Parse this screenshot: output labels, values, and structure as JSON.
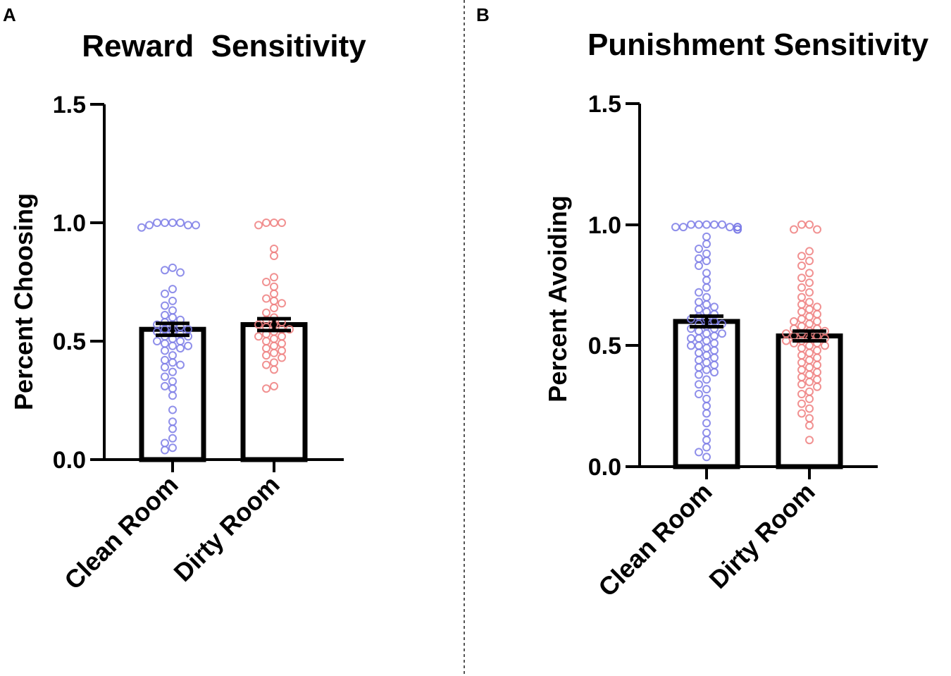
{
  "chart_data": [
    {
      "panel": "A",
      "type": "bar",
      "title": "Reward  Sensitivity",
      "ylabel": "Percent Choosing",
      "ylim": [
        0,
        1.5
      ],
      "yticks": [
        "0.0",
        "0.5",
        "1.0",
        "1.5"
      ],
      "yticks_values": [
        0,
        0.5,
        1.0,
        1.5
      ],
      "categories": [
        "Clean Room",
        "Dirty Room"
      ],
      "values": [
        0.55,
        0.57
      ],
      "sem": [
        0.025,
        0.025
      ],
      "point_colors": [
        "#7b7be6",
        "#ef7e7e"
      ],
      "points": [
        [
          1.0,
          1.0,
          1.0,
          1.0,
          0.99,
          0.99,
          0.99,
          0.98,
          0.81,
          0.8,
          0.79,
          0.72,
          0.7,
          0.67,
          0.65,
          0.63,
          0.61,
          0.6,
          0.59,
          0.58,
          0.57,
          0.57,
          0.56,
          0.55,
          0.55,
          0.54,
          0.54,
          0.53,
          0.52,
          0.52,
          0.51,
          0.5,
          0.5,
          0.49,
          0.48,
          0.48,
          0.47,
          0.46,
          0.44,
          0.42,
          0.41,
          0.4,
          0.39,
          0.37,
          0.35,
          0.33,
          0.31,
          0.3,
          0.27,
          0.21,
          0.16,
          0.13,
          0.09,
          0.07,
          0.05,
          0.04
        ],
        [
          1.0,
          1.0,
          1.0,
          0.99,
          0.89,
          0.86,
          0.77,
          0.75,
          0.73,
          0.7,
          0.68,
          0.67,
          0.66,
          0.64,
          0.62,
          0.6,
          0.59,
          0.58,
          0.57,
          0.57,
          0.56,
          0.55,
          0.55,
          0.54,
          0.53,
          0.52,
          0.52,
          0.51,
          0.5,
          0.49,
          0.48,
          0.47,
          0.46,
          0.45,
          0.44,
          0.43,
          0.41,
          0.4,
          0.38,
          0.31,
          0.3
        ]
      ]
    },
    {
      "panel": "B",
      "type": "bar",
      "title": "Punishment Sensitivity",
      "ylabel": "Percent Avoiding",
      "ylim": [
        0,
        1.5
      ],
      "yticks": [
        "0.0",
        "0.5",
        "1.0",
        "1.5"
      ],
      "yticks_values": [
        0,
        0.5,
        1.0,
        1.5
      ],
      "categories": [
        "Clean Room",
        "Dirty Room"
      ],
      "values": [
        0.6,
        0.54
      ],
      "sem": [
        0.022,
        0.02
      ],
      "point_colors": [
        "#7b7be6",
        "#ef7e7e"
      ],
      "points": [
        [
          1.0,
          1.0,
          1.0,
          1.0,
          1.0,
          0.99,
          0.99,
          0.99,
          0.99,
          0.99,
          0.98,
          0.98,
          0.95,
          0.92,
          0.9,
          0.88,
          0.86,
          0.85,
          0.83,
          0.8,
          0.77,
          0.74,
          0.72,
          0.7,
          0.68,
          0.67,
          0.66,
          0.65,
          0.64,
          0.63,
          0.62,
          0.61,
          0.61,
          0.6,
          0.59,
          0.59,
          0.58,
          0.57,
          0.57,
          0.56,
          0.55,
          0.55,
          0.54,
          0.53,
          0.53,
          0.52,
          0.51,
          0.5,
          0.5,
          0.49,
          0.48,
          0.47,
          0.46,
          0.45,
          0.44,
          0.43,
          0.42,
          0.41,
          0.4,
          0.39,
          0.38,
          0.36,
          0.34,
          0.32,
          0.3,
          0.28,
          0.25,
          0.22,
          0.18,
          0.14,
          0.11,
          0.08,
          0.06,
          0.04
        ],
        [
          1.0,
          1.0,
          0.98,
          0.98,
          0.89,
          0.87,
          0.85,
          0.83,
          0.8,
          0.78,
          0.76,
          0.74,
          0.72,
          0.7,
          0.68,
          0.67,
          0.66,
          0.65,
          0.64,
          0.63,
          0.62,
          0.61,
          0.6,
          0.6,
          0.59,
          0.58,
          0.57,
          0.57,
          0.56,
          0.56,
          0.55,
          0.55,
          0.54,
          0.54,
          0.53,
          0.53,
          0.52,
          0.52,
          0.51,
          0.51,
          0.5,
          0.5,
          0.49,
          0.48,
          0.47,
          0.46,
          0.45,
          0.44,
          0.43,
          0.42,
          0.41,
          0.4,
          0.39,
          0.38,
          0.37,
          0.36,
          0.35,
          0.34,
          0.33,
          0.31,
          0.3,
          0.28,
          0.26,
          0.24,
          0.22,
          0.2,
          0.17,
          0.11
        ]
      ]
    }
  ]
}
